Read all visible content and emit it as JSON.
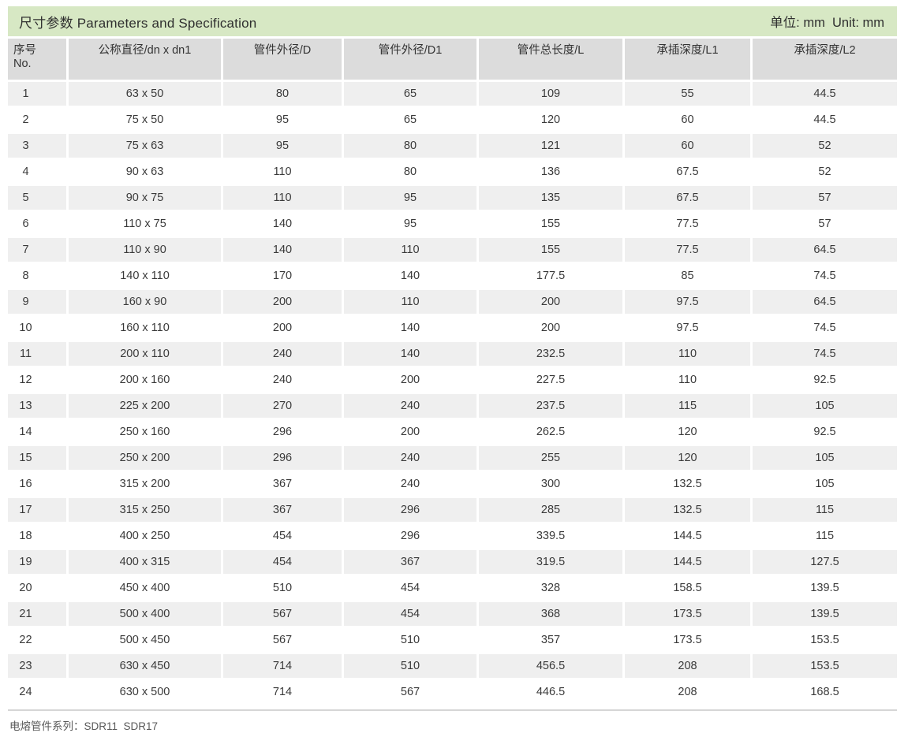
{
  "title_bar": {
    "title": "尺寸参数 Parameters and Specification",
    "unit": "单位: mm  Unit: mm"
  },
  "table": {
    "header": {
      "no_line1": "序号",
      "no_line2": "No.",
      "cols": [
        "公称直径/dn x dn1",
        "管件外径/D",
        "管件外径/D1",
        "管件总长度/L",
        "承插深度/L1",
        "承插深度/L2"
      ]
    },
    "rows": [
      [
        "1",
        "63 x 50",
        "80",
        "65",
        "109",
        "55",
        "44.5"
      ],
      [
        "2",
        "75 x 50",
        "95",
        "65",
        "120",
        "60",
        "44.5"
      ],
      [
        "3",
        "75 x 63",
        "95",
        "80",
        "121",
        "60",
        "52"
      ],
      [
        "4",
        "90 x 63",
        "110",
        "80",
        "136",
        "67.5",
        "52"
      ],
      [
        "5",
        "90 x 75",
        "110",
        "95",
        "135",
        "67.5",
        "57"
      ],
      [
        "6",
        "110 x 75",
        "140",
        "95",
        "155",
        "77.5",
        "57"
      ],
      [
        "7",
        "110 x 90",
        "140",
        "110",
        "155",
        "77.5",
        "64.5"
      ],
      [
        "8",
        "140 x 110",
        "170",
        "140",
        "177.5",
        "85",
        "74.5"
      ],
      [
        "9",
        "160 x 90",
        "200",
        "110",
        "200",
        "97.5",
        "64.5"
      ],
      [
        "10",
        "160 x 110",
        "200",
        "140",
        "200",
        "97.5",
        "74.5"
      ],
      [
        "11",
        "200 x 110",
        "240",
        "140",
        "232.5",
        "110",
        "74.5"
      ],
      [
        "12",
        "200 x 160",
        "240",
        "200",
        "227.5",
        "110",
        "92.5"
      ],
      [
        "13",
        "225 x 200",
        "270",
        "240",
        "237.5",
        "115",
        "105"
      ],
      [
        "14",
        "250 x 160",
        "296",
        "200",
        "262.5",
        "120",
        "92.5"
      ],
      [
        "15",
        "250 x 200",
        "296",
        "240",
        "255",
        "120",
        "105"
      ],
      [
        "16",
        "315 x 200",
        "367",
        "240",
        "300",
        "132.5",
        "105"
      ],
      [
        "17",
        "315 x 250",
        "367",
        "296",
        "285",
        "132.5",
        "115"
      ],
      [
        "18",
        "400 x 250",
        "454",
        "296",
        "339.5",
        "144.5",
        "115"
      ],
      [
        "19",
        "400 x 315",
        "454",
        "367",
        "319.5",
        "144.5",
        "127.5"
      ],
      [
        "20",
        "450 x 400",
        "510",
        "454",
        "328",
        "158.5",
        "139.5"
      ],
      [
        "21",
        "500 x 400",
        "567",
        "454",
        "368",
        "173.5",
        "139.5"
      ],
      [
        "22",
        "500 x 450",
        "567",
        "510",
        "357",
        "173.5",
        "153.5"
      ],
      [
        "23",
        "630 x 450",
        "714",
        "510",
        "456.5",
        "208",
        "153.5"
      ],
      [
        "24",
        "630 x 500",
        "714",
        "567",
        "446.5",
        "208",
        "168.5"
      ]
    ],
    "cell_names": [
      "cell-no",
      "cell-nominal-diameter",
      "cell-outer-diameter-d",
      "cell-outer-diameter-d1",
      "cell-total-length-l",
      "cell-socket-depth-l1",
      "cell-socket-depth-l2"
    ]
  },
  "footer": {
    "note": "电熔管件系列：SDR11  SDR17"
  },
  "colors": {
    "title_bg": "#d7e8c4",
    "header_bg": "#dcdcdc",
    "row_alt_bg": "#efefef",
    "text": "#3a3a3a"
  }
}
